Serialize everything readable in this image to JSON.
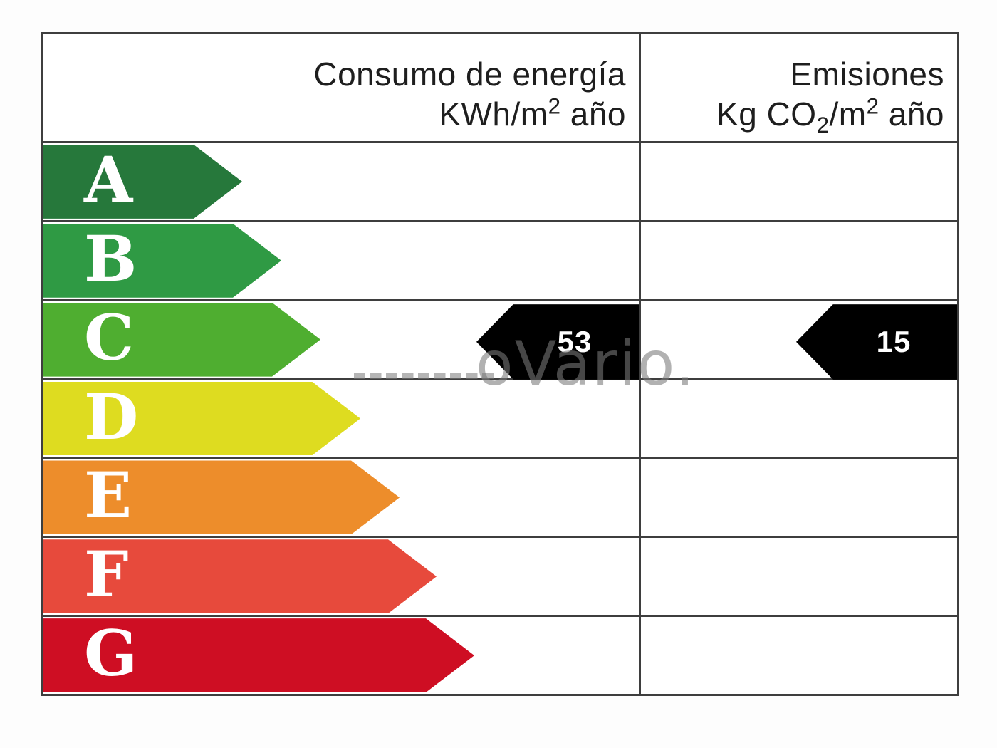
{
  "header": {
    "left": {
      "line1": "Consumo de energía",
      "line2_prefix": "KWh/m",
      "line2_sup": "2",
      "line2_suffix": " año"
    },
    "right": {
      "line1": "Emisiones",
      "line2_prefix": "Kg CO",
      "line2_sub": "2",
      "line2_mid": "/m",
      "line2_sup": "2",
      "line2_suffix": " año"
    }
  },
  "ratings": [
    {
      "letter": "A",
      "color": "#26783b",
      "band_width": 280
    },
    {
      "letter": "B",
      "color": "#2f9a44",
      "band_width": 335
    },
    {
      "letter": "C",
      "color": "#4fae30",
      "band_width": 390
    },
    {
      "letter": "D",
      "color": "#dedc20",
      "band_width": 446
    },
    {
      "letter": "E",
      "color": "#ed8d2b",
      "band_width": 501
    },
    {
      "letter": "F",
      "color": "#e74a3c",
      "band_width": 553
    },
    {
      "letter": "G",
      "color": "#ce0e23",
      "band_width": 606
    }
  ],
  "values": {
    "arrow_color": "#000000",
    "consumption": {
      "value": "53",
      "rating_row": "C"
    },
    "emissions": {
      "value": "15",
      "rating_row": "C"
    }
  },
  "watermark": {
    "text": "oVario."
  },
  "chart_data": {
    "type": "bar",
    "categories": [
      "A",
      "B",
      "C",
      "D",
      "E",
      "F",
      "G"
    ],
    "category_colors": [
      "#26783b",
      "#2f9a44",
      "#4fae30",
      "#dedc20",
      "#ed8d2b",
      "#e74a3c",
      "#ce0e23"
    ],
    "columns": [
      "Consumo de energía KWh/m2 año",
      "Emisiones Kg CO2/m2 año"
    ],
    "values": {
      "consumo_kwh_m2_ano": 53,
      "emisiones_kg_co2_m2_ano": 15,
      "rating": "C"
    },
    "title": "",
    "xlabel": "",
    "ylabel": "",
    "legend": false,
    "notes": "Energy efficiency label; black left-pointing arrows mark rating C in both columns"
  }
}
